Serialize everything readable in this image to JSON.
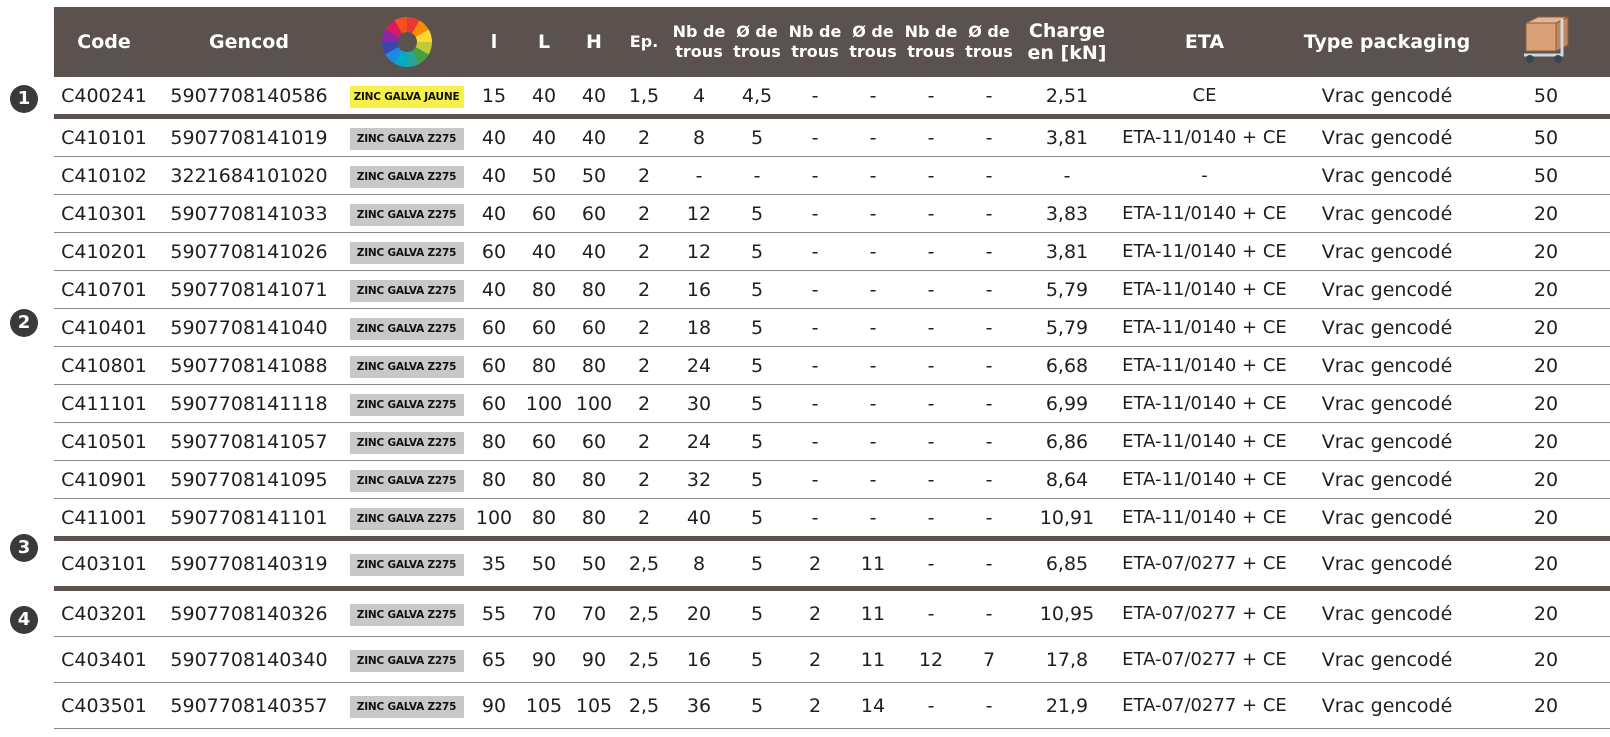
{
  "headers": {
    "code": "Code",
    "gencod": "Gencod",
    "finish_icon": "color-wheel-icon",
    "l_small": "l",
    "L": "L",
    "H": "H",
    "ep": "Ep.",
    "nb_trous_1": "Nb de trous",
    "diam_trous_1": "Ø de trous",
    "nb_trous_2": "Nb de trous",
    "diam_trous_2": "Ø de trous",
    "nb_trous_3": "Nb de trous",
    "diam_trous_3": "Ø de trous",
    "charge": "Charge en [kN]",
    "eta": "ETA",
    "type_packaging": "Type packaging",
    "quantity_icon": "box-cart-icon"
  },
  "group_markers": [
    "1",
    "2",
    "3",
    "4"
  ],
  "colors": {
    "header_bg": "#5b5250",
    "galva_jaune": "#f7ef4a",
    "galva_z275": "#c8c8c8"
  },
  "rows": [
    {
      "code": "C400241",
      "gencod": "5907708140586",
      "finish": "ZINC GALVA JAUNE",
      "finish_color": "#f7ef4a",
      "l": "15",
      "L": "40",
      "H": "40",
      "ep": "1,5",
      "nb1": "4",
      "d1": "4,5",
      "nb2": "-",
      "d2": "-",
      "nb3": "-",
      "d3": "-",
      "charge": "2,51",
      "eta": "CE",
      "pack": "Vrac gencodé",
      "qty": "50"
    },
    {
      "code": "C410101",
      "gencod": "5907708141019",
      "finish": "ZINC GALVA Z275",
      "finish_color": "#c8c8c8",
      "l": "40",
      "L": "40",
      "H": "40",
      "ep": "2",
      "nb1": "8",
      "d1": "5",
      "nb2": "-",
      "d2": "-",
      "nb3": "-",
      "d3": "-",
      "charge": "3,81",
      "eta": "ETA-11/0140 + CE",
      "pack": "Vrac gencodé",
      "qty": "50"
    },
    {
      "code": "C410102",
      "gencod": "3221684101020",
      "finish": "ZINC GALVA Z275",
      "finish_color": "#c8c8c8",
      "l": "40",
      "L": "50",
      "H": "50",
      "ep": "2",
      "nb1": "-",
      "d1": "-",
      "nb2": "-",
      "d2": "-",
      "nb3": "-",
      "d3": "-",
      "charge": "-",
      "eta": "-",
      "pack": "Vrac gencodé",
      "qty": "50"
    },
    {
      "code": "C410301",
      "gencod": "5907708141033",
      "finish": "ZINC GALVA Z275",
      "finish_color": "#c8c8c8",
      "l": "40",
      "L": "60",
      "H": "60",
      "ep": "2",
      "nb1": "12",
      "d1": "5",
      "nb2": "-",
      "d2": "-",
      "nb3": "-",
      "d3": "-",
      "charge": "3,83",
      "eta": "ETA-11/0140 + CE",
      "pack": "Vrac gencodé",
      "qty": "20"
    },
    {
      "code": "C410201",
      "gencod": "5907708141026",
      "finish": "ZINC GALVA Z275",
      "finish_color": "#c8c8c8",
      "l": "60",
      "L": "40",
      "H": "40",
      "ep": "2",
      "nb1": "12",
      "d1": "5",
      "nb2": "-",
      "d2": "-",
      "nb3": "-",
      "d3": "-",
      "charge": "3,81",
      "eta": "ETA-11/0140 + CE",
      "pack": "Vrac gencodé",
      "qty": "20"
    },
    {
      "code": "C410701",
      "gencod": "5907708141071",
      "finish": "ZINC GALVA Z275",
      "finish_color": "#c8c8c8",
      "l": "40",
      "L": "80",
      "H": "80",
      "ep": "2",
      "nb1": "16",
      "d1": "5",
      "nb2": "-",
      "d2": "-",
      "nb3": "-",
      "d3": "-",
      "charge": "5,79",
      "eta": "ETA-11/0140 + CE",
      "pack": "Vrac gencodé",
      "qty": "20"
    },
    {
      "code": "C410401",
      "gencod": "5907708141040",
      "finish": "ZINC GALVA Z275",
      "finish_color": "#c8c8c8",
      "l": "60",
      "L": "60",
      "H": "60",
      "ep": "2",
      "nb1": "18",
      "d1": "5",
      "nb2": "-",
      "d2": "-",
      "nb3": "-",
      "d3": "-",
      "charge": "5,79",
      "eta": "ETA-11/0140 + CE",
      "pack": "Vrac gencodé",
      "qty": "20"
    },
    {
      "code": "C410801",
      "gencod": "5907708141088",
      "finish": "ZINC GALVA Z275",
      "finish_color": "#c8c8c8",
      "l": "60",
      "L": "80",
      "H": "80",
      "ep": "2",
      "nb1": "24",
      "d1": "5",
      "nb2": "-",
      "d2": "-",
      "nb3": "-",
      "d3": "-",
      "charge": "6,68",
      "eta": "ETA-11/0140 + CE",
      "pack": "Vrac gencodé",
      "qty": "20"
    },
    {
      "code": "C411101",
      "gencod": "5907708141118",
      "finish": "ZINC GALVA Z275",
      "finish_color": "#c8c8c8",
      "l": "60",
      "L": "100",
      "H": "100",
      "ep": "2",
      "nb1": "30",
      "d1": "5",
      "nb2": "-",
      "d2": "-",
      "nb3": "-",
      "d3": "-",
      "charge": "6,99",
      "eta": "ETA-11/0140 + CE",
      "pack": "Vrac gencodé",
      "qty": "20"
    },
    {
      "code": "C410501",
      "gencod": "5907708141057",
      "finish": "ZINC GALVA Z275",
      "finish_color": "#c8c8c8",
      "l": "80",
      "L": "60",
      "H": "60",
      "ep": "2",
      "nb1": "24",
      "d1": "5",
      "nb2": "-",
      "d2": "-",
      "nb3": "-",
      "d3": "-",
      "charge": "6,86",
      "eta": "ETA-11/0140 + CE",
      "pack": "Vrac gencodé",
      "qty": "20"
    },
    {
      "code": "C410901",
      "gencod": "5907708141095",
      "finish": "ZINC GALVA Z275",
      "finish_color": "#c8c8c8",
      "l": "80",
      "L": "80",
      "H": "80",
      "ep": "2",
      "nb1": "32",
      "d1": "5",
      "nb2": "-",
      "d2": "-",
      "nb3": "-",
      "d3": "-",
      "charge": "8,64",
      "eta": "ETA-11/0140 + CE",
      "pack": "Vrac gencodé",
      "qty": "20"
    },
    {
      "code": "C411001",
      "gencod": "5907708141101",
      "finish": "ZINC GALVA Z275",
      "finish_color": "#c8c8c8",
      "l": "100",
      "L": "80",
      "H": "80",
      "ep": "2",
      "nb1": "40",
      "d1": "5",
      "nb2": "-",
      "d2": "-",
      "nb3": "-",
      "d3": "-",
      "charge": "10,91",
      "eta": "ETA-11/0140 + CE",
      "pack": "Vrac gencodé",
      "qty": "20"
    },
    {
      "code": "C403101",
      "gencod": "5907708140319",
      "finish": "ZINC GALVA Z275",
      "finish_color": "#c8c8c8",
      "l": "35",
      "L": "50",
      "H": "50",
      "ep": "2,5",
      "nb1": "8",
      "d1": "5",
      "nb2": "2",
      "d2": "11",
      "nb3": "-",
      "d3": "-",
      "charge": "6,85",
      "eta": "ETA-07/0277 + CE",
      "pack": "Vrac gencodé",
      "qty": "20"
    },
    {
      "code": "C403201",
      "gencod": "5907708140326",
      "finish": "ZINC GALVA Z275",
      "finish_color": "#c8c8c8",
      "l": "55",
      "L": "70",
      "H": "70",
      "ep": "2,5",
      "nb1": "20",
      "d1": "5",
      "nb2": "2",
      "d2": "11",
      "nb3": "-",
      "d3": "-",
      "charge": "10,95",
      "eta": "ETA-07/0277 + CE",
      "pack": "Vrac gencodé",
      "qty": "20"
    },
    {
      "code": "C403401",
      "gencod": "5907708140340",
      "finish": "ZINC GALVA Z275",
      "finish_color": "#c8c8c8",
      "l": "65",
      "L": "90",
      "H": "90",
      "ep": "2,5",
      "nb1": "16",
      "d1": "5",
      "nb2": "2",
      "d2": "11",
      "nb3": "12",
      "d3": "7",
      "charge": "17,8",
      "eta": "ETA-07/0277 + CE",
      "pack": "Vrac gencodé",
      "qty": "20"
    },
    {
      "code": "C403501",
      "gencod": "5907708140357",
      "finish": "ZINC GALVA Z275",
      "finish_color": "#c8c8c8",
      "l": "90",
      "L": "105",
      "H": "105",
      "ep": "2,5",
      "nb1": "36",
      "d1": "5",
      "nb2": "2",
      "d2": "14",
      "nb3": "-",
      "d3": "-",
      "charge": "21,9",
      "eta": "ETA-07/0277 + CE",
      "pack": "Vrac gencodé",
      "qty": "20"
    }
  ]
}
